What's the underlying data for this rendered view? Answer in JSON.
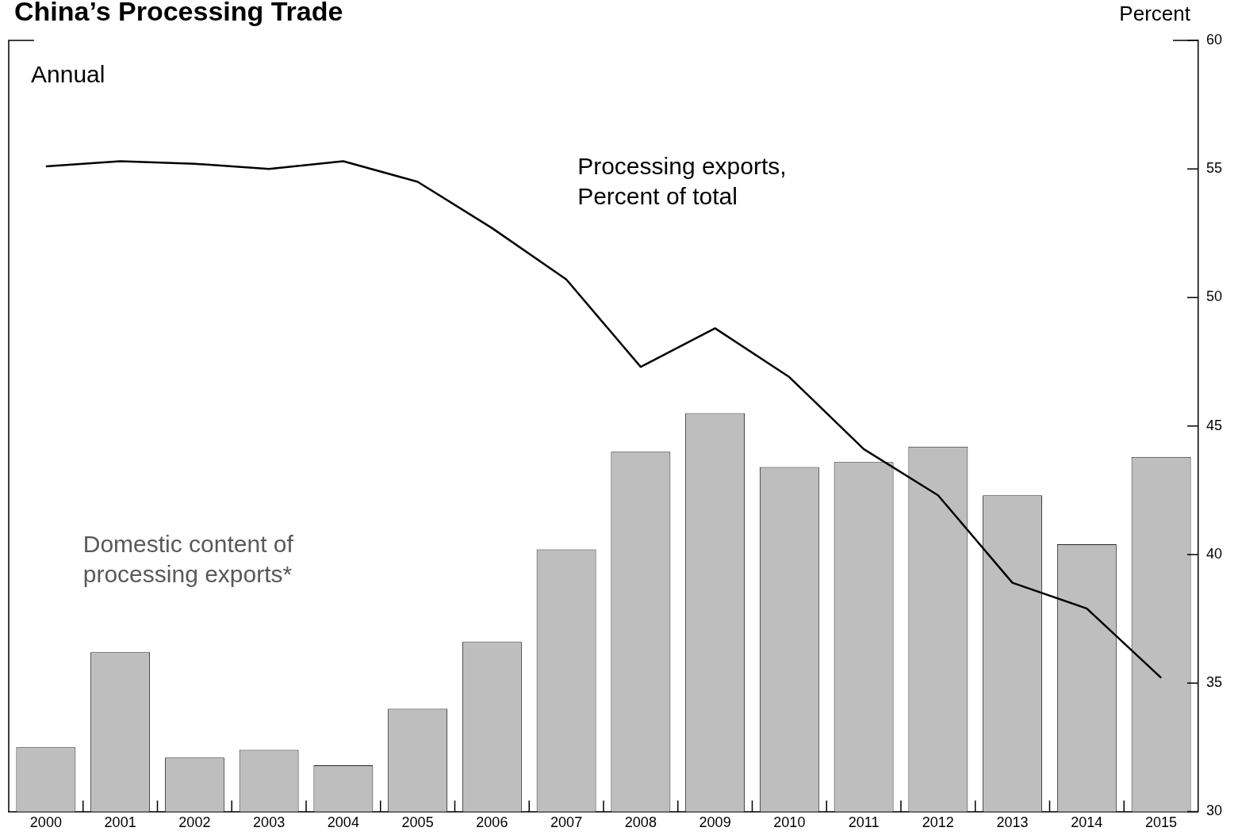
{
  "chart_data": {
    "type": "bar",
    "title": "China’s Processing Trade",
    "ylabel": "Percent",
    "annotations": [
      "Annual"
    ],
    "categories": [
      "2000",
      "2001",
      "2002",
      "2003",
      "2004",
      "2005",
      "2006",
      "2007",
      "2008",
      "2009",
      "2010",
      "2011",
      "2012",
      "2013",
      "2014",
      "2015"
    ],
    "series": [
      {
        "name": "Domestic content of processing exports*",
        "color": "#bebebe",
        "values": [
          32.5,
          36.2,
          32.1,
          32.4,
          31.8,
          34.0,
          36.6,
          40.2,
          44.0,
          45.5,
          43.4,
          43.6,
          44.2,
          42.3,
          40.4,
          43.8
        ]
      },
      {
        "name": "Processing exports, Percent of total",
        "type": "line",
        "color": "#000000",
        "values": [
          55.1,
          55.3,
          55.2,
          55.0,
          55.3,
          54.5,
          52.7,
          50.7,
          47.3,
          48.8,
          46.9,
          44.1,
          42.3,
          38.9,
          37.9,
          35.2
        ]
      }
    ],
    "ylim": [
      30,
      60
    ],
    "yticks": [
      30,
      35,
      40,
      45,
      50,
      55,
      60
    ],
    "grid": false,
    "legend": false,
    "marker": "none",
    "line_style": "solid"
  }
}
